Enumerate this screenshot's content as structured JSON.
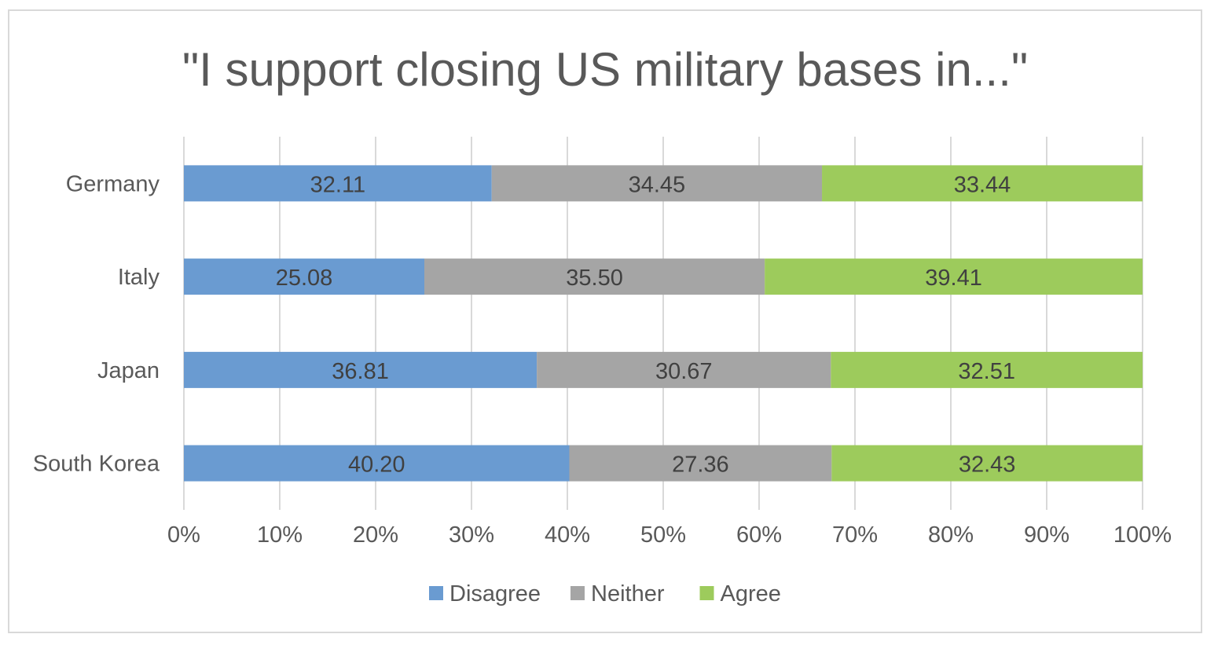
{
  "chart_data": {
    "type": "bar",
    "orientation": "horizontal",
    "stacked": "percent",
    "title": "\"I support closing US military bases in...\"",
    "categories": [
      "Germany",
      "Italy",
      "Japan",
      "South Korea"
    ],
    "series": [
      {
        "name": "Disagree",
        "color": "#6a9bd1",
        "values": [
          32.11,
          25.08,
          36.81,
          40.2
        ],
        "labels": [
          "32.11",
          "25.08",
          "36.81",
          "40.20"
        ]
      },
      {
        "name": "Neither",
        "color": "#a5a5a5",
        "values": [
          34.45,
          35.5,
          30.67,
          27.36
        ],
        "labels": [
          "34.45",
          "35.50",
          "30.67",
          "27.36"
        ]
      },
      {
        "name": "Agree",
        "color": "#9dcb5c",
        "values": [
          33.44,
          39.41,
          32.51,
          32.43
        ],
        "labels": [
          "33.44",
          "39.41",
          "32.51",
          "32.43"
        ]
      }
    ],
    "xaxis": {
      "range": [
        0,
        100
      ],
      "ticks": [
        "0%",
        "10%",
        "20%",
        "30%",
        "40%",
        "50%",
        "60%",
        "70%",
        "80%",
        "90%",
        "100%"
      ]
    },
    "grid": "vertical",
    "legend": "bottom-center"
  }
}
